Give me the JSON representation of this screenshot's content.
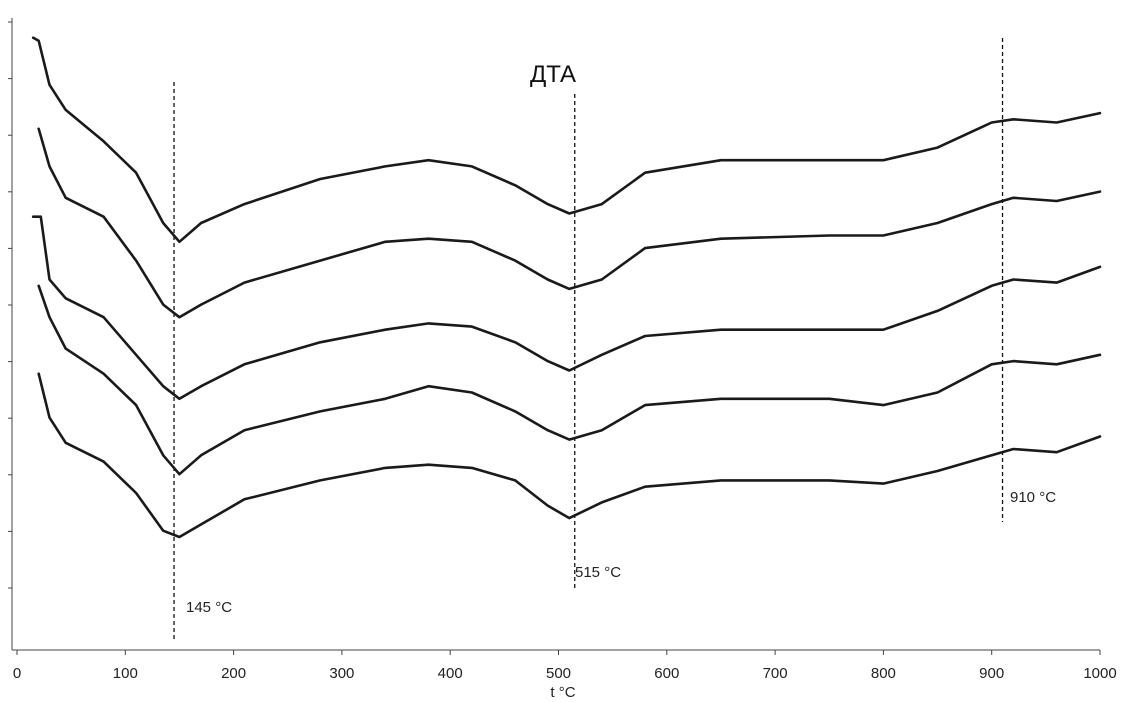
{
  "chart_data": {
    "type": "line",
    "title": "ДТА",
    "xlabel": "t °C",
    "ylabel": "",
    "xlim": [
      0,
      1000
    ],
    "ylim": [
      0,
      1
    ],
    "x_ticks": [
      0,
      100,
      200,
      300,
      400,
      500,
      600,
      700,
      800,
      900,
      1000
    ],
    "y_tick_count": 11,
    "grid": false,
    "peak_markers": [
      {
        "x": 145,
        "label": "145 °C"
      },
      {
        "x": 515,
        "label": "515 °C"
      },
      {
        "x": 910,
        "label": "910 °C"
      }
    ],
    "series": [
      {
        "points": [
          [
            15,
            0.975
          ],
          [
            20,
            0.97
          ],
          [
            30,
            0.9
          ],
          [
            45,
            0.86
          ],
          [
            80,
            0.81
          ],
          [
            110,
            0.76
          ],
          [
            135,
            0.68
          ],
          [
            150,
            0.65
          ],
          [
            170,
            0.68
          ],
          [
            210,
            0.71
          ],
          [
            280,
            0.75
          ],
          [
            340,
            0.77
          ],
          [
            380,
            0.78
          ],
          [
            420,
            0.77
          ],
          [
            460,
            0.74
          ],
          [
            490,
            0.71
          ],
          [
            510,
            0.695
          ],
          [
            540,
            0.71
          ],
          [
            580,
            0.76
          ],
          [
            650,
            0.78
          ],
          [
            750,
            0.78
          ],
          [
            800,
            0.78
          ],
          [
            850,
            0.8
          ],
          [
            900,
            0.84
          ],
          [
            920,
            0.845
          ],
          [
            960,
            0.84
          ],
          [
            1000,
            0.855
          ]
        ]
      },
      {
        "points": [
          [
            20,
            0.83
          ],
          [
            30,
            0.77
          ],
          [
            45,
            0.72
          ],
          [
            80,
            0.69
          ],
          [
            110,
            0.62
          ],
          [
            135,
            0.55
          ],
          [
            150,
            0.53
          ],
          [
            170,
            0.55
          ],
          [
            210,
            0.585
          ],
          [
            280,
            0.62
          ],
          [
            340,
            0.65
          ],
          [
            380,
            0.655
          ],
          [
            420,
            0.65
          ],
          [
            460,
            0.62
          ],
          [
            490,
            0.59
          ],
          [
            510,
            0.575
          ],
          [
            540,
            0.59
          ],
          [
            580,
            0.64
          ],
          [
            650,
            0.655
          ],
          [
            750,
            0.66
          ],
          [
            800,
            0.66
          ],
          [
            850,
            0.68
          ],
          [
            900,
            0.71
          ],
          [
            920,
            0.72
          ],
          [
            960,
            0.715
          ],
          [
            1000,
            0.73
          ]
        ]
      },
      {
        "points": [
          [
            15,
            0.69
          ],
          [
            22,
            0.69
          ],
          [
            30,
            0.59
          ],
          [
            45,
            0.56
          ],
          [
            80,
            0.53
          ],
          [
            110,
            0.47
          ],
          [
            135,
            0.42
          ],
          [
            150,
            0.4
          ],
          [
            170,
            0.42
          ],
          [
            210,
            0.455
          ],
          [
            280,
            0.49
          ],
          [
            340,
            0.51
          ],
          [
            380,
            0.52
          ],
          [
            420,
            0.515
          ],
          [
            460,
            0.49
          ],
          [
            490,
            0.46
          ],
          [
            510,
            0.445
          ],
          [
            540,
            0.47
          ],
          [
            580,
            0.5
          ],
          [
            650,
            0.51
          ],
          [
            750,
            0.51
          ],
          [
            800,
            0.51
          ],
          [
            850,
            0.54
          ],
          [
            900,
            0.58
          ],
          [
            920,
            0.59
          ],
          [
            960,
            0.585
          ],
          [
            1000,
            0.61
          ]
        ]
      },
      {
        "points": [
          [
            20,
            0.58
          ],
          [
            30,
            0.53
          ],
          [
            45,
            0.48
          ],
          [
            80,
            0.44
          ],
          [
            110,
            0.39
          ],
          [
            135,
            0.31
          ],
          [
            150,
            0.28
          ],
          [
            170,
            0.31
          ],
          [
            210,
            0.35
          ],
          [
            280,
            0.38
          ],
          [
            340,
            0.4
          ],
          [
            380,
            0.42
          ],
          [
            420,
            0.41
          ],
          [
            460,
            0.38
          ],
          [
            490,
            0.35
          ],
          [
            510,
            0.335
          ],
          [
            540,
            0.35
          ],
          [
            580,
            0.39
          ],
          [
            650,
            0.4
          ],
          [
            750,
            0.4
          ],
          [
            800,
            0.39
          ],
          [
            850,
            0.41
          ],
          [
            900,
            0.455
          ],
          [
            920,
            0.46
          ],
          [
            960,
            0.455
          ],
          [
            1000,
            0.47
          ]
        ]
      },
      {
        "points": [
          [
            20,
            0.44
          ],
          [
            30,
            0.37
          ],
          [
            45,
            0.33
          ],
          [
            80,
            0.3
          ],
          [
            110,
            0.25
          ],
          [
            135,
            0.19
          ],
          [
            150,
            0.18
          ],
          [
            170,
            0.2
          ],
          [
            210,
            0.24
          ],
          [
            280,
            0.27
          ],
          [
            340,
            0.29
          ],
          [
            380,
            0.295
          ],
          [
            420,
            0.29
          ],
          [
            460,
            0.27
          ],
          [
            490,
            0.23
          ],
          [
            510,
            0.21
          ],
          [
            540,
            0.235
          ],
          [
            580,
            0.26
          ],
          [
            650,
            0.27
          ],
          [
            750,
            0.27
          ],
          [
            800,
            0.265
          ],
          [
            850,
            0.285
          ],
          [
            900,
            0.31
          ],
          [
            920,
            0.32
          ],
          [
            960,
            0.315
          ],
          [
            1000,
            0.34
          ]
        ]
      }
    ]
  }
}
